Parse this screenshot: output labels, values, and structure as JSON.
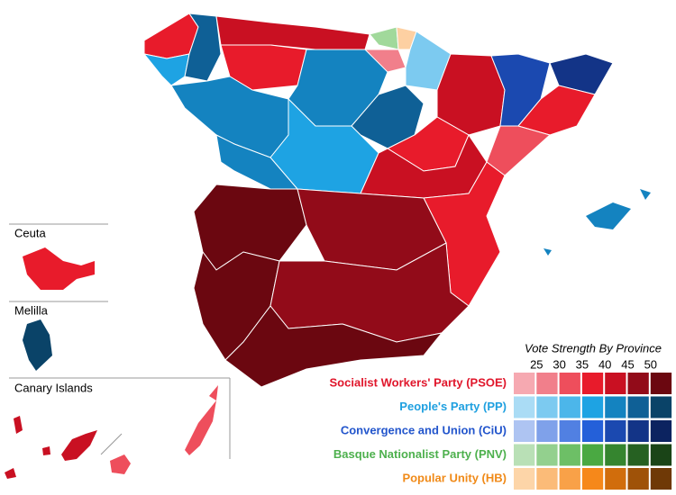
{
  "insets": {
    "ceuta": "Ceuta",
    "melilla": "Melilla",
    "canary": "Canary Islands"
  },
  "legend": {
    "title": "Vote Strength By Province",
    "ticks": [
      25,
      30,
      35,
      40,
      45,
      50
    ],
    "parties": [
      {
        "name": "Socialist Workers' Party (PSOE)",
        "color": "#e0162b",
        "shades": [
          "#f6a9b1",
          "#f17f8b",
          "#ee4e5c",
          "#e81b2b",
          "#c91022",
          "#920b19",
          "#6b0710"
        ]
      },
      {
        "name": "People's Party (PP)",
        "color": "#1fa0e0",
        "shades": [
          "#aadcf5",
          "#7ccaf0",
          "#4cb6ea",
          "#1ea3e3",
          "#1483c0",
          "#0f6096",
          "#0a4368"
        ]
      },
      {
        "name": "Convergence and Union (CiU)",
        "color": "#2255cc",
        "shades": [
          "#aec4f2",
          "#7fa1ea",
          "#5180e2",
          "#2460d9",
          "#1b49b0",
          "#133487",
          "#0c2360"
        ]
      },
      {
        "name": "Basque Nationalist Party (PNV)",
        "color": "#4db04d",
        "shades": [
          "#b9e0b6",
          "#93d08e",
          "#6dbf66",
          "#4aa942",
          "#35852f",
          "#266122",
          "#1a4417"
        ]
      },
      {
        "name": "Popular Unity (HB)",
        "color": "#f08a18",
        "shades": [
          "#fdd5a8",
          "#fbbb78",
          "#f9a148",
          "#f6881a",
          "#d16d0c",
          "#9f5208",
          "#6f3906"
        ]
      }
    ]
  }
}
